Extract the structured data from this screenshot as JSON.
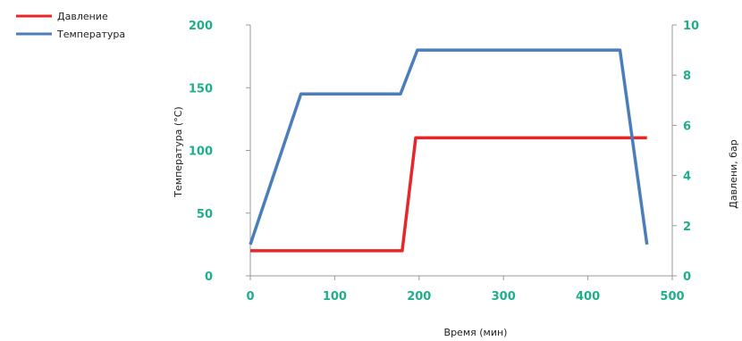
{
  "chart_data": {
    "type": "line",
    "xlabel": "Время (мин)",
    "ylabel_left": "Температура (°C)",
    "ylabel_right": "Давлени, бар",
    "xlim": [
      0,
      500
    ],
    "ylim_left": [
      0,
      200
    ],
    "ylim_right": [
      0,
      10
    ],
    "x_ticks": [
      "0",
      "100",
      "200",
      "300",
      "400",
      "500"
    ],
    "y_left_ticks": [
      "0",
      "50",
      "100",
      "150",
      "200"
    ],
    "y_right_ticks": [
      "0",
      "2",
      "4",
      "6",
      "8",
      "10"
    ],
    "grid": false,
    "legend_position": "top-left",
    "series": [
      {
        "name": "Давление",
        "axis": "right",
        "color": "#e8262a",
        "x": [
          0,
          180,
          196,
          470
        ],
        "y": [
          1,
          1,
          5.5,
          5.5
        ]
      },
      {
        "name": "Температура",
        "axis": "left",
        "color": "#4a7ebb",
        "x": [
          0,
          60,
          178,
          198,
          438,
          470
        ],
        "y": [
          25,
          145,
          145,
          180,
          180,
          25
        ]
      }
    ],
    "tick_color": "#1fae8c",
    "axis_color": "#999999"
  }
}
